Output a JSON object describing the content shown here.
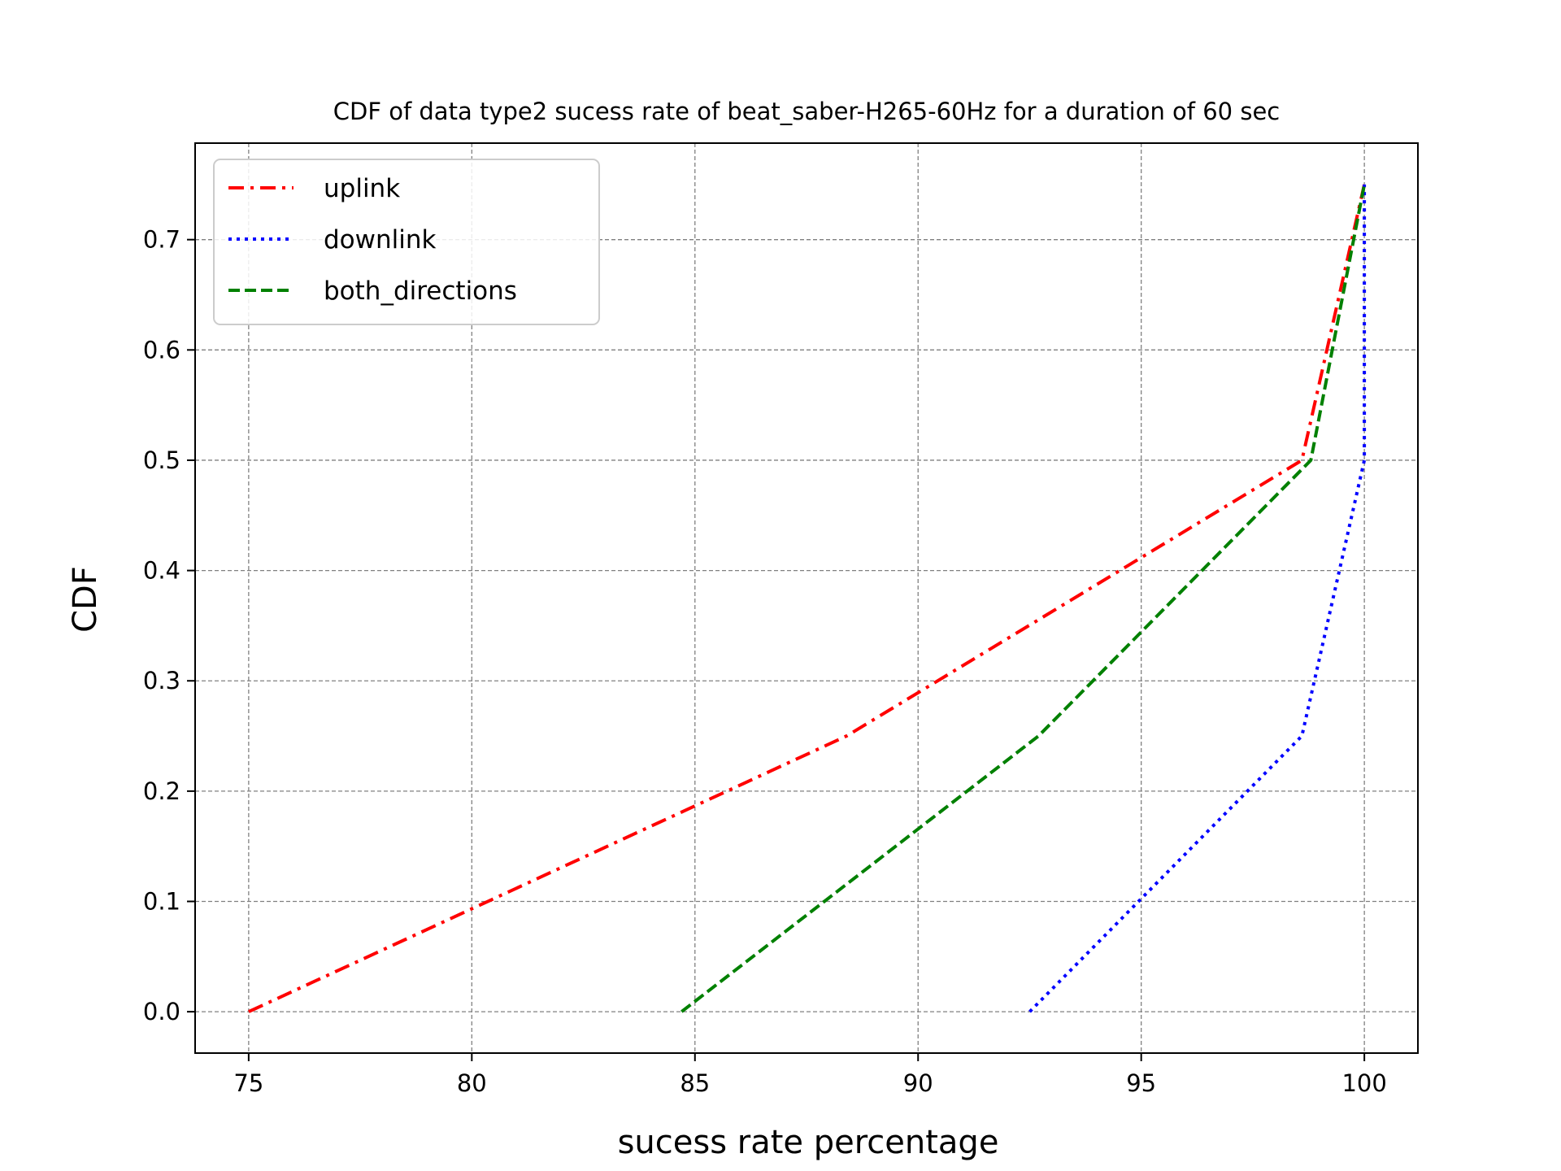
{
  "chart_data": {
    "type": "line",
    "title": "CDF of data type2 sucess rate of beat_saber-H265-60Hz for a duration of 60 sec",
    "xlabel": "sucess rate percentage",
    "ylabel": "CDF",
    "xlim": [
      73.8,
      101.2
    ],
    "ylim": [
      -0.0375,
      0.7875
    ],
    "xticks": [
      75,
      80,
      85,
      90,
      95,
      100
    ],
    "yticks": [
      0.0,
      0.1,
      0.2,
      0.3,
      0.4,
      0.5,
      0.6,
      0.7
    ],
    "xtick_labels": [
      "75",
      "80",
      "85",
      "90",
      "95",
      "100"
    ],
    "ytick_labels": [
      "0.0",
      "0.1",
      "0.2",
      "0.3",
      "0.4",
      "0.5",
      "0.6",
      "0.7"
    ],
    "grid": true,
    "legend_position": "upper-left",
    "series": [
      {
        "name": "uplink",
        "color": "#ff0000",
        "style": "dashdot",
        "x": [
          75.0,
          88.4,
          98.6,
          100.0
        ],
        "y": [
          0.0,
          0.25,
          0.5,
          0.75
        ]
      },
      {
        "name": "downlink",
        "color": "#0000ff",
        "style": "dotted",
        "x": [
          92.5,
          98.6,
          100.0,
          100.0
        ],
        "y": [
          0.0,
          0.25,
          0.5,
          0.75
        ]
      },
      {
        "name": "both_directions",
        "color": "#008000",
        "style": "dashed",
        "x": [
          84.7,
          92.7,
          98.8,
          100.0
        ],
        "y": [
          0.0,
          0.25,
          0.5,
          0.75
        ]
      }
    ]
  }
}
